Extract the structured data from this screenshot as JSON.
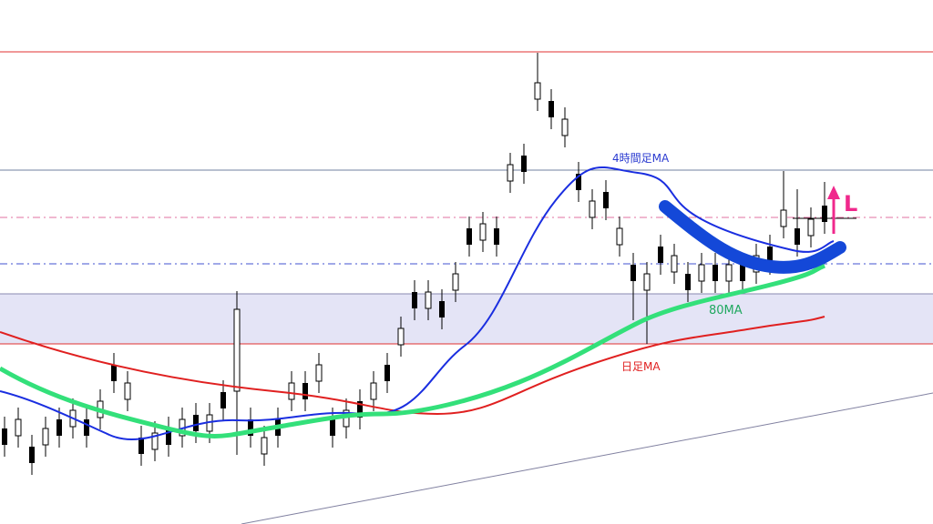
{
  "annotations": {
    "h4_ma": "4時間足MA",
    "ma80": "80MA",
    "daily_ma": "日足MA",
    "signal": "L"
  }
}
